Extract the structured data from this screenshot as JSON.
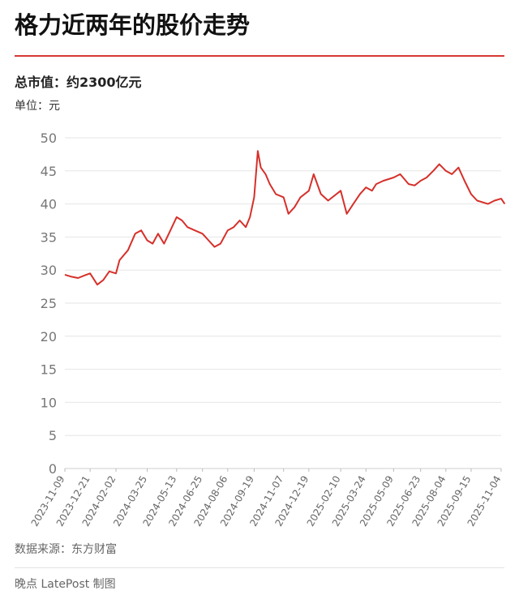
{
  "header": {
    "title": "格力近两年的股价走势",
    "subtitle": "总市值：约2300亿元",
    "unit": "单位：元"
  },
  "footer": {
    "source": "数据来源：东方财富",
    "credit": "晚点 LatePost 制图"
  },
  "colors": {
    "line": "#d6302a",
    "accent_rule": "#d63a35",
    "grid": "#e6e6e6",
    "axis_text": "#777777"
  },
  "chart_data": {
    "type": "line",
    "title": "格力近两年的股价走势",
    "ylabel": "单位：元",
    "xlabel": "",
    "ylim": [
      0,
      50
    ],
    "y_ticks": [
      0,
      5,
      10,
      15,
      20,
      25,
      30,
      35,
      40,
      45,
      50
    ],
    "x_ticks": [
      "2023-11-09",
      "2023-12-21",
      "2024-02-02",
      "2024-03-25",
      "2024-05-13",
      "2024-06-25",
      "2024-08-06",
      "2024-09-19",
      "2024-11-07",
      "2024-12-19",
      "2025-02-10",
      "2025-03-24",
      "2025-05-09",
      "2025-06-23",
      "2025-08-04",
      "2025-09-15",
      "2025-11-04"
    ],
    "grid": true,
    "series": [
      {
        "x": [
          "2023-11-09",
          "2023-11-20",
          "2023-12-01",
          "2023-12-12",
          "2023-12-21",
          "2024-01-02",
          "2024-01-12",
          "2024-01-22",
          "2024-02-02",
          "2024-02-08",
          "2024-02-22",
          "2024-03-05",
          "2024-03-15",
          "2024-03-25",
          "2024-04-03",
          "2024-04-12",
          "2024-04-22",
          "2024-04-30",
          "2024-05-13",
          "2024-05-22",
          "2024-05-31",
          "2024-06-12",
          "2024-06-25",
          "2024-07-05",
          "2024-07-15",
          "2024-07-25",
          "2024-08-06",
          "2024-08-16",
          "2024-08-26",
          "2024-09-05",
          "2024-09-12",
          "2024-09-19",
          "2024-09-25",
          "2024-09-30",
          "2024-10-08",
          "2024-10-15",
          "2024-10-25",
          "2024-11-07",
          "2024-11-15",
          "2024-11-25",
          "2024-12-05",
          "2024-12-19",
          "2024-12-27",
          "2025-01-08",
          "2025-01-20",
          "2025-02-10",
          "2025-02-20",
          "2025-03-03",
          "2025-03-14",
          "2025-03-24",
          "2025-04-03",
          "2025-04-10",
          "2025-04-22",
          "2025-05-09",
          "2025-05-20",
          "2025-06-03",
          "2025-06-13",
          "2025-06-23",
          "2025-07-03",
          "2025-07-14",
          "2025-07-24",
          "2025-08-04",
          "2025-08-14",
          "2025-08-25",
          "2025-09-04",
          "2025-09-15",
          "2025-09-25",
          "2025-10-13",
          "2025-10-24",
          "2025-11-04",
          "2025-11-10"
        ],
        "values": [
          29.3,
          29.0,
          28.8,
          29.2,
          29.5,
          27.8,
          28.5,
          29.8,
          29.5,
          31.5,
          33.0,
          35.5,
          36.0,
          34.5,
          34.0,
          35.5,
          34.0,
          35.5,
          38.0,
          37.5,
          36.5,
          36.0,
          35.5,
          34.5,
          33.5,
          34.0,
          36.0,
          36.5,
          37.5,
          36.5,
          38.0,
          41.0,
          48.0,
          45.5,
          44.5,
          43.0,
          41.5,
          41.0,
          38.5,
          39.5,
          41.0,
          42.0,
          44.5,
          41.5,
          40.5,
          42.0,
          38.5,
          40.0,
          41.5,
          42.5,
          42.0,
          43.0,
          43.5,
          44.0,
          44.5,
          43.0,
          42.8,
          43.5,
          44.0,
          45.0,
          46.0,
          45.0,
          44.5,
          45.5,
          43.5,
          41.5,
          40.5,
          40.0,
          40.5,
          40.8,
          40.0
        ]
      }
    ]
  }
}
